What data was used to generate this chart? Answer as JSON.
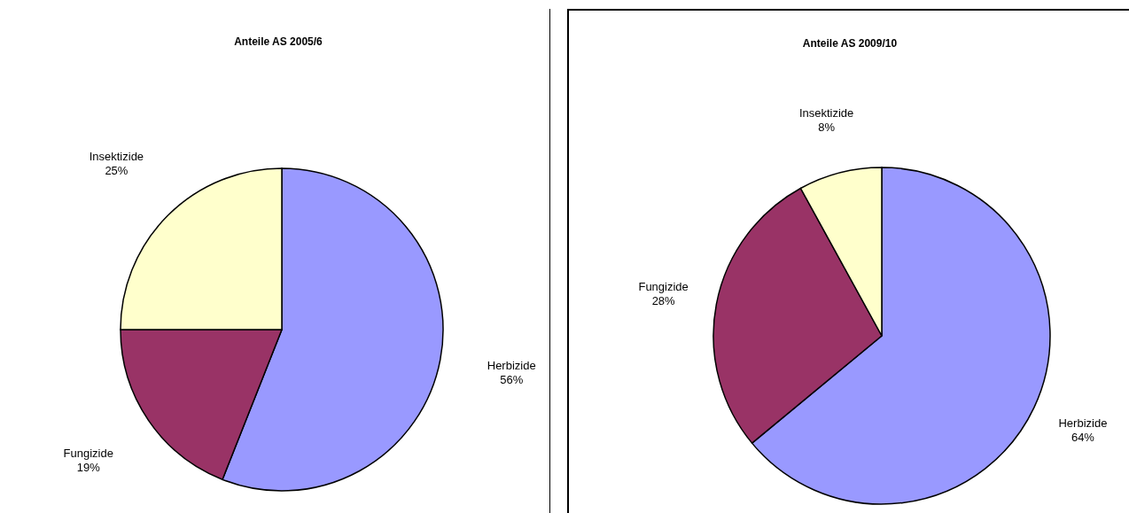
{
  "chart_data": [
    {
      "type": "pie",
      "title": "Anteile AS 2005/6",
      "categories": [
        "Herbizide",
        "Fungizide",
        "Insektizide"
      ],
      "values": [
        56,
        19,
        25
      ],
      "colors": [
        "#9999ff",
        "#993366",
        "#ffffcc"
      ],
      "value_labels": [
        "56%",
        "19%",
        "25%"
      ],
      "legend": false
    },
    {
      "type": "pie",
      "title": "Anteile AS 2009/10",
      "categories": [
        "Herbizide",
        "Fungizide",
        "Insektizide"
      ],
      "values": [
        64,
        28,
        8
      ],
      "colors": [
        "#9999ff",
        "#993366",
        "#ffffcc"
      ],
      "value_labels": [
        "64%",
        "28%",
        "8%"
      ],
      "legend": false
    }
  ]
}
